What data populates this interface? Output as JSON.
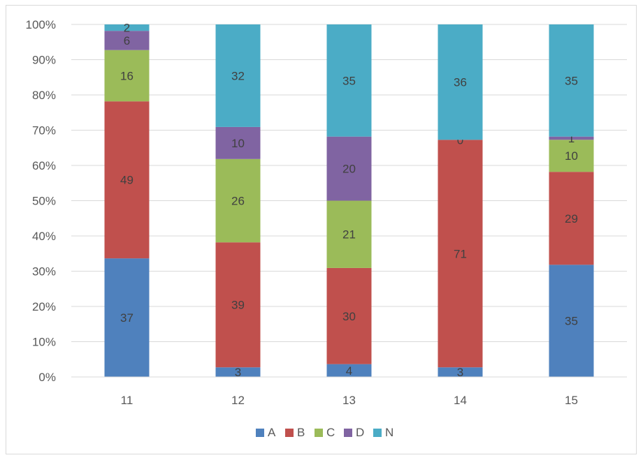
{
  "chart_data": {
    "type": "bar",
    "stacked": "percent",
    "categories": [
      "11",
      "12",
      "13",
      "14",
      "15"
    ],
    "series": [
      {
        "name": "A",
        "color": "#4f81bd",
        "values": [
          37,
          3,
          4,
          3,
          35
        ]
      },
      {
        "name": "B",
        "color": "#c0504d",
        "values": [
          49,
          39,
          30,
          71,
          29
        ]
      },
      {
        "name": "C",
        "color": "#9bbb59",
        "values": [
          16,
          26,
          21,
          0,
          10
        ]
      },
      {
        "name": "D",
        "color": "#8064a2",
        "values": [
          6,
          10,
          20,
          0,
          1
        ]
      },
      {
        "name": "N",
        "color": "#4bacc6",
        "values": [
          2,
          32,
          35,
          36,
          35
        ]
      }
    ],
    "data_labels_shown": [
      [
        true,
        true,
        true,
        true,
        true
      ],
      [
        true,
        true,
        true,
        true,
        true
      ],
      [
        true,
        true,
        true,
        false,
        true
      ],
      [
        true,
        true,
        true,
        true,
        true
      ],
      [
        true,
        true,
        true,
        true,
        true
      ]
    ],
    "y_ticks": [
      "0%",
      "10%",
      "20%",
      "30%",
      "40%",
      "50%",
      "60%",
      "70%",
      "80%",
      "90%",
      "100%"
    ],
    "ylim": [
      0,
      100
    ],
    "grid": true,
    "legend_position": "bottom",
    "title": "",
    "xlabel": "",
    "ylabel": ""
  }
}
